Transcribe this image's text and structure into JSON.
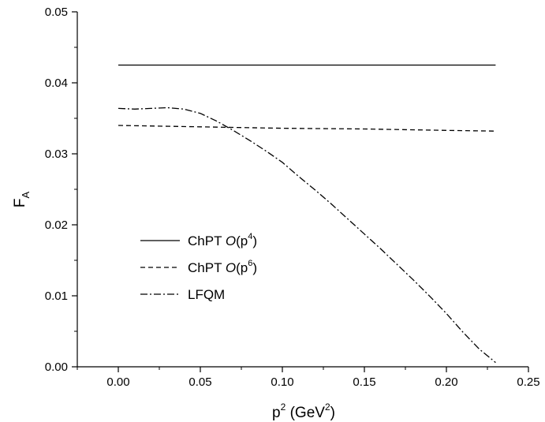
{
  "chart_data": {
    "type": "line",
    "xlabel": "p2 (GeV2)",
    "xlabel_parts": {
      "base": "p",
      "exp": "2",
      "unit_open": " (GeV",
      "unit_exp": "2",
      "unit_close": ")"
    },
    "ylabel": "FA",
    "ylabel_parts": {
      "base": "F",
      "sub": "A"
    },
    "xlim": [
      -0.025,
      0.25
    ],
    "ylim": [
      0.0,
      0.05
    ],
    "xticks": [
      0.0,
      0.05,
      0.1,
      0.15,
      0.2,
      0.25
    ],
    "xtick_labels": [
      "0.00",
      "0.05",
      "0.10",
      "0.15",
      "0.20",
      "0.25"
    ],
    "yticks": [
      0.0,
      0.01,
      0.02,
      0.03,
      0.04,
      0.05
    ],
    "ytick_labels": [
      "0.00",
      "0.01",
      "0.02",
      "0.03",
      "0.04",
      "0.05"
    ],
    "grid": false,
    "legend_position": "lower-left",
    "series": [
      {
        "name": "ChPT O(p4)",
        "legend": {
          "prefix": "ChPT ",
          "italic": "O",
          "open": "(p",
          "exp": "4",
          "close": ")"
        },
        "style": "solid",
        "x": [
          0.0,
          0.23
        ],
        "y": [
          0.0425,
          0.0425
        ]
      },
      {
        "name": "ChPT O(p6)",
        "legend": {
          "prefix": "ChPT ",
          "italic": "O",
          "open": "(p",
          "exp": "6",
          "close": ")"
        },
        "style": "dashed",
        "x": [
          0.0,
          0.05,
          0.1,
          0.15,
          0.2,
          0.23
        ],
        "y": [
          0.034,
          0.0338,
          0.0336,
          0.0335,
          0.0333,
          0.0332
        ]
      },
      {
        "name": "LFQM",
        "legend": {
          "prefix": "LFQM",
          "italic": "",
          "open": "",
          "exp": "",
          "close": ""
        },
        "style": "dashdot",
        "x": [
          0.0,
          0.01,
          0.02,
          0.03,
          0.04,
          0.05,
          0.06,
          0.07,
          0.08,
          0.09,
          0.1,
          0.11,
          0.12,
          0.13,
          0.14,
          0.15,
          0.16,
          0.17,
          0.18,
          0.19,
          0.2,
          0.21,
          0.22,
          0.23
        ],
        "y": [
          0.0364,
          0.0363,
          0.0364,
          0.0365,
          0.0363,
          0.0357,
          0.0346,
          0.0333,
          0.0319,
          0.0304,
          0.0288,
          0.0268,
          0.0249,
          0.0229,
          0.0208,
          0.0187,
          0.0166,
          0.0144,
          0.0122,
          0.0099,
          0.0075,
          0.0049,
          0.0025,
          0.0006
        ]
      }
    ]
  }
}
